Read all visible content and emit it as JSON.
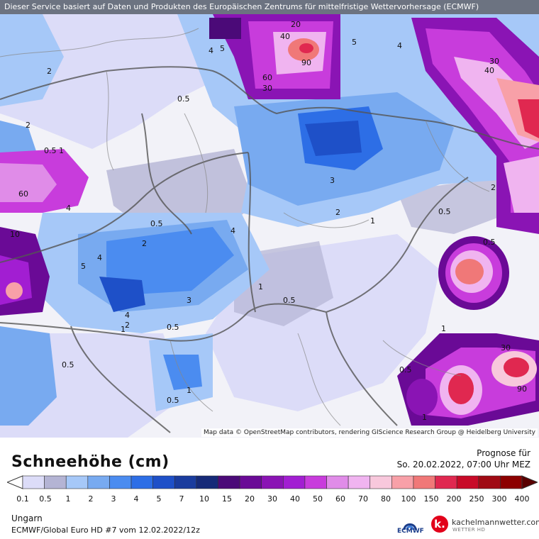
{
  "header": {
    "attribution": "Dieser Service basiert auf Daten und Produkten des Europäischen Zentrums für mittelfristige Wettervorhersage (ECMWF)"
  },
  "map": {
    "credit": "Map data © OpenStreetMap contributors, rendering GIScience Research Group @ Heidelberg University",
    "contour_labels": [
      "0.5",
      "1",
      "2",
      "3",
      "4",
      "5",
      "10",
      "20",
      "30",
      "40",
      "60",
      "90"
    ]
  },
  "legend": {
    "title": "Schneehöhe (cm)",
    "forecast_label": "Prognose für",
    "forecast_time": "So. 20.02.2022, 07:00 Uhr MEZ",
    "thresholds": [
      "0.1",
      "0.5",
      "1",
      "2",
      "3",
      "4",
      "5",
      "7",
      "10",
      "15",
      "20",
      "30",
      "40",
      "50",
      "60",
      "70",
      "80",
      "100",
      "150",
      "200",
      "250",
      "300",
      "400"
    ],
    "colors": [
      "#dcdcf8",
      "#b4b4d4",
      "#a6c8f8",
      "#78aaf0",
      "#4b8cf0",
      "#2d6ee6",
      "#1e50c8",
      "#1a3c9e",
      "#162a78",
      "#4b0a78",
      "#6a0a96",
      "#8a14b4",
      "#a21ed2",
      "#c83cdc",
      "#e08ce8",
      "#f0b4f0",
      "#f8c8dc",
      "#f8a0a8",
      "#f07878",
      "#e02850",
      "#c80a28",
      "#a00a14",
      "#8c0000",
      "#5a0000"
    ],
    "region": "Ungarn",
    "model_info": "ECMWF/Global Euro HD #7 vom  12.02.2022/12z",
    "ecmwf_label": "ECMWF",
    "brand_letter": "k.",
    "brand_name": "kachelmannwetter.com",
    "brand_sub": "WETTER HD"
  }
}
